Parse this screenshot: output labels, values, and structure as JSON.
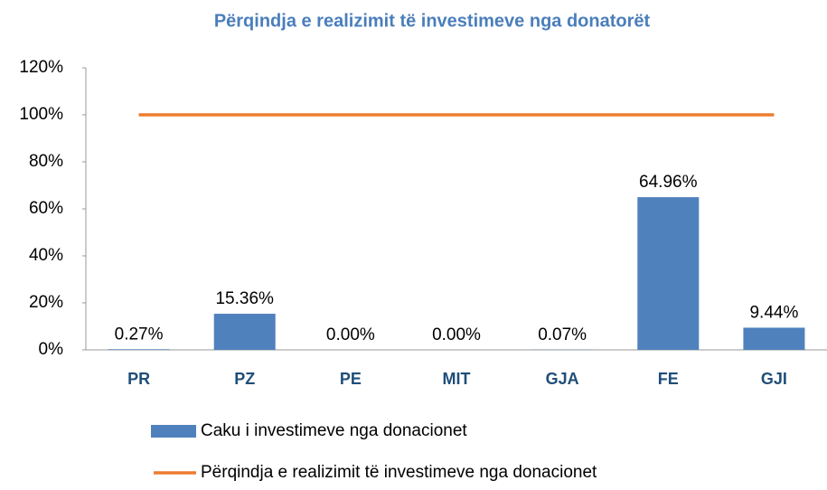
{
  "chart_data": {
    "type": "bar",
    "title": "Përqindja e realizimit të investimeve nga donatorët",
    "categories": [
      "PR",
      "PZ",
      "PE",
      "MIT",
      "GJA",
      "FE",
      "GJI"
    ],
    "series": [
      {
        "name": "Caku i investimeve nga donacionet",
        "type": "bar",
        "color": "#4f81bd",
        "values": [
          0.27,
          15.36,
          0,
          0,
          0.07,
          64.96,
          9.44
        ],
        "value_labels": [
          "0.27%",
          "15.36%",
          "0.00%",
          "0.00%",
          "0.07%",
          "64.96%",
          "9.44%"
        ]
      },
      {
        "name": "Përqindja e realizimit të investimeve nga donacionet",
        "type": "line",
        "color": "#ed7d31",
        "values": [
          100,
          100,
          100,
          100,
          100,
          100,
          100
        ]
      }
    ],
    "ylim": [
      0,
      120
    ],
    "yticks": [
      {
        "value": 0,
        "label": "0%"
      },
      {
        "value": 20,
        "label": "20%"
      },
      {
        "value": 40,
        "label": "40%"
      },
      {
        "value": 60,
        "label": "60%"
      },
      {
        "value": 80,
        "label": "80%"
      },
      {
        "value": 100,
        "label": "100%"
      },
      {
        "value": 120,
        "label": "120%"
      }
    ],
    "grid": false
  }
}
